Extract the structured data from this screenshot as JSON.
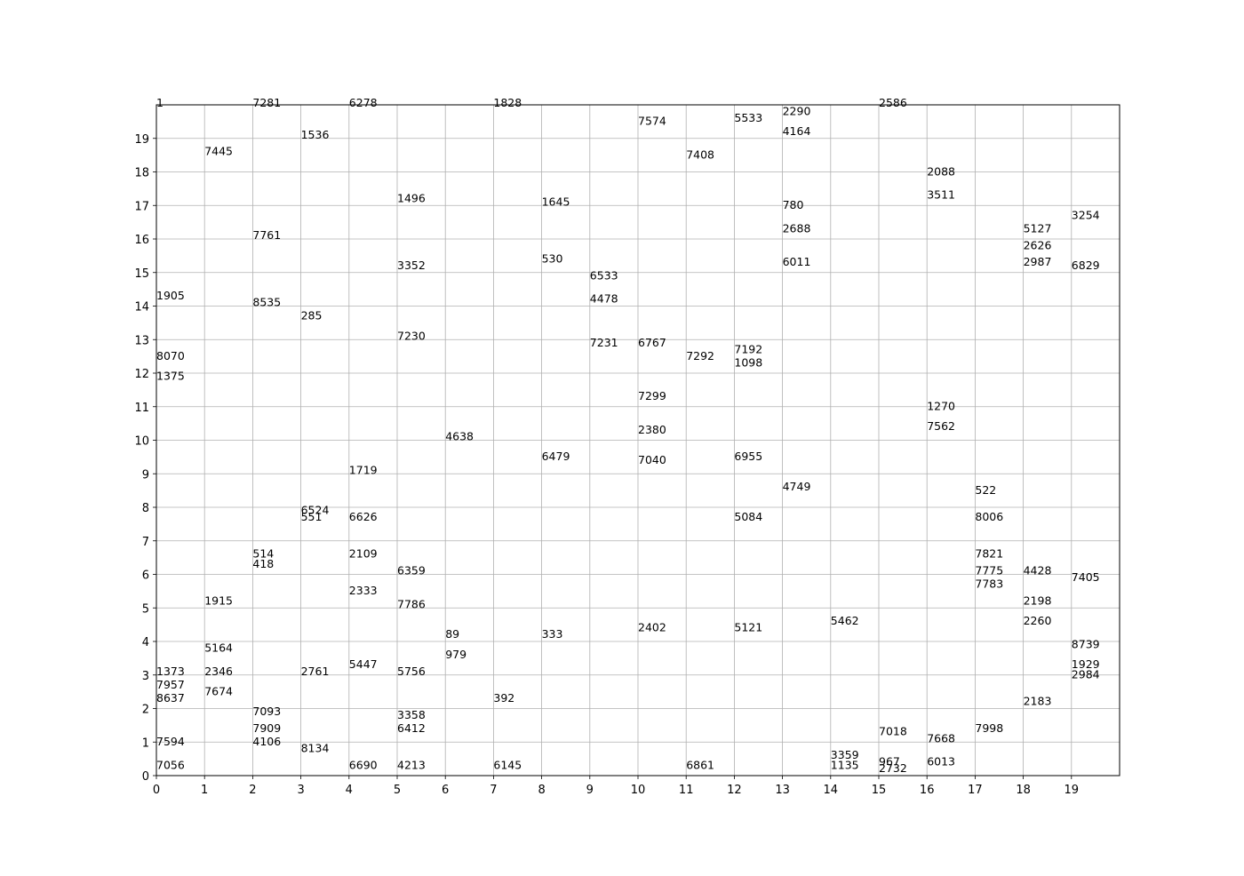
{
  "chart_data": {
    "type": "scatter",
    "title": "",
    "xlabel": "",
    "ylabel": "",
    "xlim": [
      0,
      20
    ],
    "ylim": [
      0,
      20
    ],
    "xticks": [
      "0",
      "1",
      "2",
      "3",
      "4",
      "5",
      "6",
      "7",
      "8",
      "9",
      "10",
      "11",
      "12",
      "13",
      "14",
      "15",
      "16",
      "17",
      "18",
      "19"
    ],
    "yticks": [
      "0",
      "1",
      "2",
      "3",
      "4",
      "5",
      "6",
      "7",
      "8",
      "9",
      "10",
      "11",
      "12",
      "13",
      "14",
      "15",
      "16",
      "17",
      "18",
      "19"
    ],
    "grid": true,
    "legend": "none",
    "point_style": "text labels (dense, overlapping)",
    "points": [
      {
        "x": 0.0,
        "y": 19.95,
        "label": "1"
      },
      {
        "x": 0.0,
        "y": 14.2,
        "label": "1905"
      },
      {
        "x": 0.0,
        "y": 12.4,
        "label": "8070"
      },
      {
        "x": 0.0,
        "y": 11.8,
        "label": "1375"
      },
      {
        "x": 0.0,
        "y": 3.0,
        "label": "1373"
      },
      {
        "x": 0.0,
        "y": 2.6,
        "label": "7957"
      },
      {
        "x": 0.0,
        "y": 2.2,
        "label": "8637"
      },
      {
        "x": 0.0,
        "y": 0.9,
        "label": "7594"
      },
      {
        "x": 0.0,
        "y": 0.2,
        "label": "7056"
      },
      {
        "x": 1.0,
        "y": 18.5,
        "label": "7445"
      },
      {
        "x": 1.0,
        "y": 5.1,
        "label": "1915"
      },
      {
        "x": 1.0,
        "y": 3.7,
        "label": "5164"
      },
      {
        "x": 1.0,
        "y": 3.0,
        "label": "2346"
      },
      {
        "x": 1.0,
        "y": 2.4,
        "label": "7674"
      },
      {
        "x": 2.0,
        "y": 19.95,
        "label": "7281"
      },
      {
        "x": 2.0,
        "y": 16.0,
        "label": "7761"
      },
      {
        "x": 2.0,
        "y": 14.0,
        "label": "8535"
      },
      {
        "x": 2.0,
        "y": 6.5,
        "label": "514"
      },
      {
        "x": 2.0,
        "y": 6.2,
        "label": "418"
      },
      {
        "x": 2.0,
        "y": 1.8,
        "label": "7093"
      },
      {
        "x": 2.0,
        "y": 1.3,
        "label": "7909"
      },
      {
        "x": 2.0,
        "y": 0.9,
        "label": "4106"
      },
      {
        "x": 3.0,
        "y": 19.0,
        "label": "1536"
      },
      {
        "x": 3.0,
        "y": 13.6,
        "label": "285"
      },
      {
        "x": 3.0,
        "y": 7.8,
        "label": "6524"
      },
      {
        "x": 3.0,
        "y": 7.6,
        "label": "551"
      },
      {
        "x": 3.0,
        "y": 3.0,
        "label": "2761"
      },
      {
        "x": 3.0,
        "y": 0.7,
        "label": "8134"
      },
      {
        "x": 4.0,
        "y": 19.95,
        "label": "6278"
      },
      {
        "x": 4.0,
        "y": 9.0,
        "label": "1719"
      },
      {
        "x": 4.0,
        "y": 7.6,
        "label": "6626"
      },
      {
        "x": 4.0,
        "y": 6.5,
        "label": "2109"
      },
      {
        "x": 4.0,
        "y": 5.4,
        "label": "2333"
      },
      {
        "x": 4.0,
        "y": 3.2,
        "label": "5447"
      },
      {
        "x": 4.0,
        "y": 0.2,
        "label": "6690"
      },
      {
        "x": 5.0,
        "y": 17.1,
        "label": "1496"
      },
      {
        "x": 5.0,
        "y": 15.1,
        "label": "3352"
      },
      {
        "x": 5.0,
        "y": 13.0,
        "label": "7230"
      },
      {
        "x": 5.0,
        "y": 6.0,
        "label": "6359"
      },
      {
        "x": 5.0,
        "y": 5.0,
        "label": "7786"
      },
      {
        "x": 5.0,
        "y": 3.0,
        "label": "5756"
      },
      {
        "x": 5.0,
        "y": 1.7,
        "label": "3358"
      },
      {
        "x": 5.0,
        "y": 1.3,
        "label": "6412"
      },
      {
        "x": 5.0,
        "y": 0.2,
        "label": "4213"
      },
      {
        "x": 6.0,
        "y": 10.0,
        "label": "4638"
      },
      {
        "x": 6.0,
        "y": 4.1,
        "label": "89"
      },
      {
        "x": 6.0,
        "y": 3.5,
        "label": "979"
      },
      {
        "x": 7.0,
        "y": 19.95,
        "label": "1828"
      },
      {
        "x": 7.0,
        "y": 2.2,
        "label": "392"
      },
      {
        "x": 7.0,
        "y": 0.2,
        "label": "6145"
      },
      {
        "x": 8.0,
        "y": 17.0,
        "label": "1645"
      },
      {
        "x": 8.0,
        "y": 15.3,
        "label": "530"
      },
      {
        "x": 8.0,
        "y": 9.4,
        "label": "6479"
      },
      {
        "x": 8.0,
        "y": 4.1,
        "label": "333"
      },
      {
        "x": 9.0,
        "y": 14.8,
        "label": "6533"
      },
      {
        "x": 9.0,
        "y": 14.1,
        "label": "4478"
      },
      {
        "x": 9.0,
        "y": 12.8,
        "label": "7231"
      },
      {
        "x": 10.0,
        "y": 19.4,
        "label": "7574"
      },
      {
        "x": 10.0,
        "y": 12.8,
        "label": "6767"
      },
      {
        "x": 10.0,
        "y": 11.2,
        "label": "7299"
      },
      {
        "x": 10.0,
        "y": 10.2,
        "label": "2380"
      },
      {
        "x": 10.0,
        "y": 9.3,
        "label": "7040"
      },
      {
        "x": 10.0,
        "y": 4.3,
        "label": "2402"
      },
      {
        "x": 11.0,
        "y": 18.4,
        "label": "7408"
      },
      {
        "x": 11.0,
        "y": 12.4,
        "label": "7292"
      },
      {
        "x": 11.0,
        "y": 0.2,
        "label": "6861"
      },
      {
        "x": 12.0,
        "y": 19.5,
        "label": "5533"
      },
      {
        "x": 12.0,
        "y": 12.6,
        "label": "7192"
      },
      {
        "x": 12.0,
        "y": 12.2,
        "label": "1098"
      },
      {
        "x": 12.0,
        "y": 9.4,
        "label": "6955"
      },
      {
        "x": 12.0,
        "y": 7.6,
        "label": "5084"
      },
      {
        "x": 12.0,
        "y": 4.3,
        "label": "5121"
      },
      {
        "x": 13.0,
        "y": 19.7,
        "label": "2290"
      },
      {
        "x": 13.0,
        "y": 19.1,
        "label": "4164"
      },
      {
        "x": 13.0,
        "y": 16.9,
        "label": "780"
      },
      {
        "x": 13.0,
        "y": 16.2,
        "label": "2688"
      },
      {
        "x": 13.0,
        "y": 15.2,
        "label": "6011"
      },
      {
        "x": 13.0,
        "y": 8.5,
        "label": "4749"
      },
      {
        "x": 14.0,
        "y": 4.5,
        "label": "5462"
      },
      {
        "x": 14.0,
        "y": 0.5,
        "label": "3359"
      },
      {
        "x": 14.0,
        "y": 0.2,
        "label": "1135"
      },
      {
        "x": 15.0,
        "y": 19.95,
        "label": "2586"
      },
      {
        "x": 15.0,
        "y": 1.2,
        "label": "7018"
      },
      {
        "x": 15.0,
        "y": 0.3,
        "label": "967"
      },
      {
        "x": 15.0,
        "y": 0.1,
        "label": "2732"
      },
      {
        "x": 16.0,
        "y": 17.9,
        "label": "2088"
      },
      {
        "x": 16.0,
        "y": 17.2,
        "label": "3511"
      },
      {
        "x": 16.0,
        "y": 10.9,
        "label": "1270"
      },
      {
        "x": 16.0,
        "y": 10.3,
        "label": "7562"
      },
      {
        "x": 16.0,
        "y": 1.0,
        "label": "7668"
      },
      {
        "x": 16.0,
        "y": 0.3,
        "label": "6013"
      },
      {
        "x": 17.0,
        "y": 8.4,
        "label": "522"
      },
      {
        "x": 17.0,
        "y": 7.6,
        "label": "8006"
      },
      {
        "x": 17.0,
        "y": 6.5,
        "label": "7821"
      },
      {
        "x": 17.0,
        "y": 6.0,
        "label": "7775"
      },
      {
        "x": 17.0,
        "y": 5.6,
        "label": "7783"
      },
      {
        "x": 17.0,
        "y": 1.3,
        "label": "7998"
      },
      {
        "x": 18.0,
        "y": 16.2,
        "label": "5127"
      },
      {
        "x": 18.0,
        "y": 15.7,
        "label": "2626"
      },
      {
        "x": 18.0,
        "y": 15.2,
        "label": "2987"
      },
      {
        "x": 18.0,
        "y": 6.0,
        "label": "4428"
      },
      {
        "x": 18.0,
        "y": 5.1,
        "label": "2198"
      },
      {
        "x": 18.0,
        "y": 4.5,
        "label": "2260"
      },
      {
        "x": 18.0,
        "y": 2.1,
        "label": "2183"
      },
      {
        "x": 19.0,
        "y": 16.6,
        "label": "3254"
      },
      {
        "x": 19.0,
        "y": 15.1,
        "label": "6829"
      },
      {
        "x": 19.0,
        "y": 5.8,
        "label": "7405"
      },
      {
        "x": 19.0,
        "y": 3.8,
        "label": "8739"
      },
      {
        "x": 19.0,
        "y": 3.2,
        "label": "1929"
      },
      {
        "x": 19.0,
        "y": 2.9,
        "label": "2984"
      }
    ]
  }
}
